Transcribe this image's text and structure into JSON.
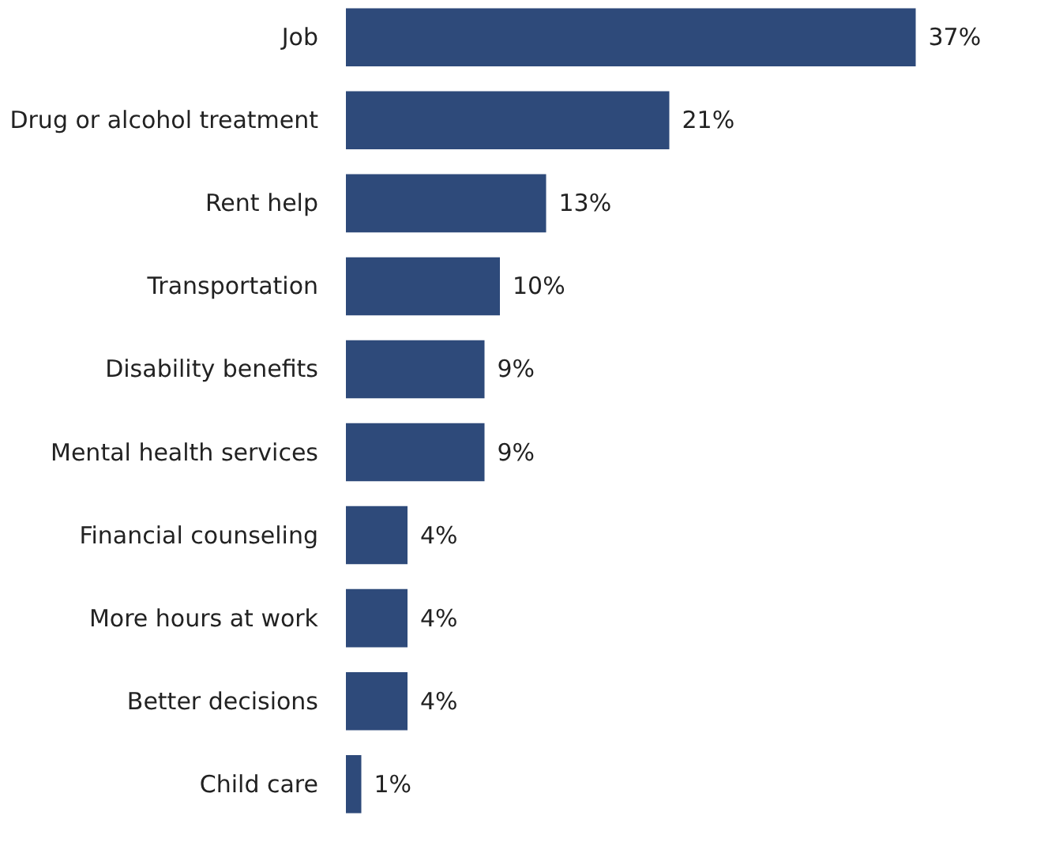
{
  "chart_data": {
    "type": "bar",
    "orientation": "horizontal",
    "categories": [
      "Job",
      "Drug or alcohol treatment",
      "Rent help",
      "Transportation",
      "Disability benefits",
      "Mental health services",
      "Financial counseling",
      "More hours at work",
      "Better decisions",
      "Child care"
    ],
    "values": [
      37,
      21,
      13,
      10,
      9,
      9,
      4,
      4,
      4,
      1
    ],
    "value_labels": [
      "37%",
      "21%",
      "13%",
      "10%",
      "9%",
      "9%",
      "4%",
      "4%",
      "4%",
      "1%"
    ],
    "color": "#2e4a7a",
    "grid": false
  }
}
